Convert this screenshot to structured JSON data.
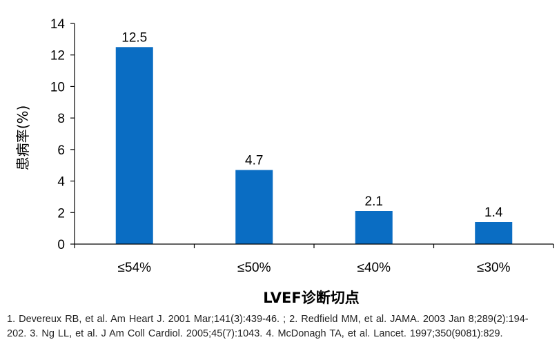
{
  "colors": {
    "bar": "#0a6dc3",
    "axis": "#000000",
    "text": "#000000"
  },
  "chart_data": {
    "type": "bar",
    "categories": [
      "≤54%",
      "≤50%",
      "≤40%",
      "≤30%"
    ],
    "values": [
      12.5,
      4.7,
      2.1,
      1.4
    ],
    "data_labels": [
      "12.5",
      "4.7",
      "2.1",
      "1.4"
    ],
    "title": "",
    "xlabel": "LVEF诊断切点",
    "ylabel": "患病率(%)",
    "ylim": [
      0,
      14
    ],
    "yticks": [
      0,
      2,
      4,
      6,
      8,
      10,
      12,
      14
    ],
    "grid": false,
    "legend": "none"
  },
  "references": "1.   Devereux RB, et al. Am Heart J. 2001 Mar;141(3):439-46. ; 2.  Redfield MM, et al. JAMA. 2003 Jan 8;289(2):194-202.   3. Ng LL, et al. J Am Coll Cardiol. 2005;45(7):1043.    4.  McDonagh TA, et al. Lancet. 1997;350(9081):829."
}
